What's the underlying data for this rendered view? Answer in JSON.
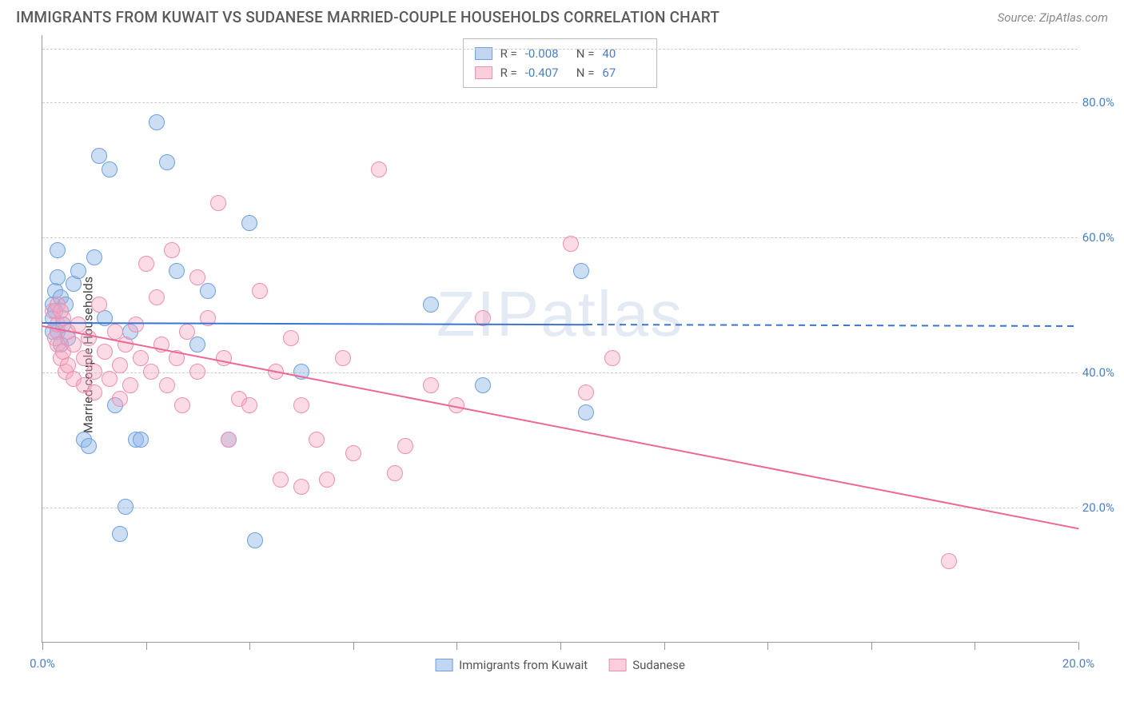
{
  "title": "IMMIGRANTS FROM KUWAIT VS SUDANESE MARRIED-COUPLE HOUSEHOLDS CORRELATION CHART",
  "source_label": "Source: ZipAtlas.com",
  "watermark": "ZIPatlas",
  "ylabel": "Married-couple Households",
  "chart": {
    "type": "scatter",
    "background_color": "#ffffff",
    "grid_color": "#cccccc",
    "axis_color": "#999999",
    "tick_label_color": "#4a7fc9",
    "xlim": [
      0,
      20
    ],
    "ylim": [
      0,
      90
    ],
    "y_gridlines": [
      20,
      40,
      60,
      80
    ],
    "y_tick_labels": [
      "20.0%",
      "40.0%",
      "60.0%",
      "80.0%"
    ],
    "x_ticks": [
      0,
      2,
      4,
      6,
      8,
      10,
      12,
      14,
      16,
      18,
      20
    ],
    "x_tick_labels": {
      "0": "0.0%",
      "20": "20.0%"
    },
    "marker_radius": 10,
    "series": [
      {
        "name": "Immigrants from Kuwait",
        "color_fill": "rgba(143,181,230,0.45)",
        "color_stroke": "#6da0e0",
        "r_label": "R =",
        "r_value": "-0.008",
        "n_label": "N =",
        "n_value": "40",
        "trend": {
          "color": "#3b74d1",
          "y_start": 47.5,
          "y_end": 47.0,
          "solid_until_x": 10.5
        },
        "points": [
          [
            0.2,
            48
          ],
          [
            0.2,
            50
          ],
          [
            0.25,
            52
          ],
          [
            0.25,
            49
          ],
          [
            0.3,
            54
          ],
          [
            0.3,
            46
          ],
          [
            0.3,
            58
          ],
          [
            0.35,
            44
          ],
          [
            0.35,
            51
          ],
          [
            0.4,
            47
          ],
          [
            0.45,
            50
          ],
          [
            0.5,
            45
          ],
          [
            0.6,
            53
          ],
          [
            0.7,
            55
          ],
          [
            0.8,
            30
          ],
          [
            0.9,
            29
          ],
          [
            1.0,
            57
          ],
          [
            1.1,
            72
          ],
          [
            1.2,
            48
          ],
          [
            1.3,
            70
          ],
          [
            1.4,
            35
          ],
          [
            1.5,
            16
          ],
          [
            1.6,
            20
          ],
          [
            1.7,
            46
          ],
          [
            1.8,
            30
          ],
          [
            1.9,
            30
          ],
          [
            2.2,
            77
          ],
          [
            2.4,
            71
          ],
          [
            2.6,
            55
          ],
          [
            3.0,
            44
          ],
          [
            3.2,
            52
          ],
          [
            3.6,
            30
          ],
          [
            4.0,
            62
          ],
          [
            4.1,
            15
          ],
          [
            5.0,
            40
          ],
          [
            7.5,
            50
          ],
          [
            8.5,
            38
          ],
          [
            10.4,
            55
          ],
          [
            10.5,
            34
          ],
          [
            0.2,
            46
          ]
        ]
      },
      {
        "name": "Sudanese",
        "color_fill": "rgba(245,165,190,0.40)",
        "color_stroke": "#ef8fb0",
        "r_label": "R =",
        "r_value": "-0.407",
        "n_label": "N =",
        "n_value": "67",
        "trend": {
          "color": "#ed6796",
          "y_start": 47,
          "y_end": 17,
          "solid_until_x": 20
        },
        "points": [
          [
            0.2,
            49
          ],
          [
            0.25,
            45
          ],
          [
            0.3,
            47
          ],
          [
            0.3,
            44
          ],
          [
            0.35,
            42
          ],
          [
            0.4,
            48
          ],
          [
            0.4,
            43
          ],
          [
            0.45,
            40
          ],
          [
            0.5,
            46
          ],
          [
            0.5,
            41
          ],
          [
            0.6,
            44
          ],
          [
            0.6,
            39
          ],
          [
            0.7,
            47
          ],
          [
            0.8,
            42
          ],
          [
            0.8,
            38
          ],
          [
            0.9,
            45
          ],
          [
            1.0,
            40
          ],
          [
            1.0,
            37
          ],
          [
            1.1,
            50
          ],
          [
            1.2,
            43
          ],
          [
            1.3,
            39
          ],
          [
            1.4,
            46
          ],
          [
            1.5,
            41
          ],
          [
            1.5,
            36
          ],
          [
            1.6,
            44
          ],
          [
            1.7,
            38
          ],
          [
            1.8,
            47
          ],
          [
            1.9,
            42
          ],
          [
            2.0,
            56
          ],
          [
            2.1,
            40
          ],
          [
            2.2,
            51
          ],
          [
            2.3,
            44
          ],
          [
            2.4,
            38
          ],
          [
            2.5,
            58
          ],
          [
            2.6,
            42
          ],
          [
            2.7,
            35
          ],
          [
            2.8,
            46
          ],
          [
            3.0,
            40
          ],
          [
            3.0,
            54
          ],
          [
            3.2,
            48
          ],
          [
            3.4,
            65
          ],
          [
            3.5,
            42
          ],
          [
            3.6,
            30
          ],
          [
            3.8,
            36
          ],
          [
            4.0,
            35
          ],
          [
            4.2,
            52
          ],
          [
            4.5,
            40
          ],
          [
            4.6,
            24
          ],
          [
            4.8,
            45
          ],
          [
            5.0,
            23
          ],
          [
            5.0,
            35
          ],
          [
            5.3,
            30
          ],
          [
            5.5,
            24
          ],
          [
            5.8,
            42
          ],
          [
            6.0,
            28
          ],
          [
            6.5,
            70
          ],
          [
            6.8,
            25
          ],
          [
            7.0,
            29
          ],
          [
            7.5,
            38
          ],
          [
            8.0,
            35
          ],
          [
            8.5,
            48
          ],
          [
            10.2,
            59
          ],
          [
            10.5,
            37
          ],
          [
            11.0,
            42
          ],
          [
            17.5,
            12
          ],
          [
            0.3,
            50
          ],
          [
            0.35,
            49
          ]
        ]
      }
    ]
  },
  "legend_bottom": [
    {
      "swatch": "blue",
      "label": "Immigrants from Kuwait"
    },
    {
      "swatch": "pink",
      "label": "Sudanese"
    }
  ]
}
